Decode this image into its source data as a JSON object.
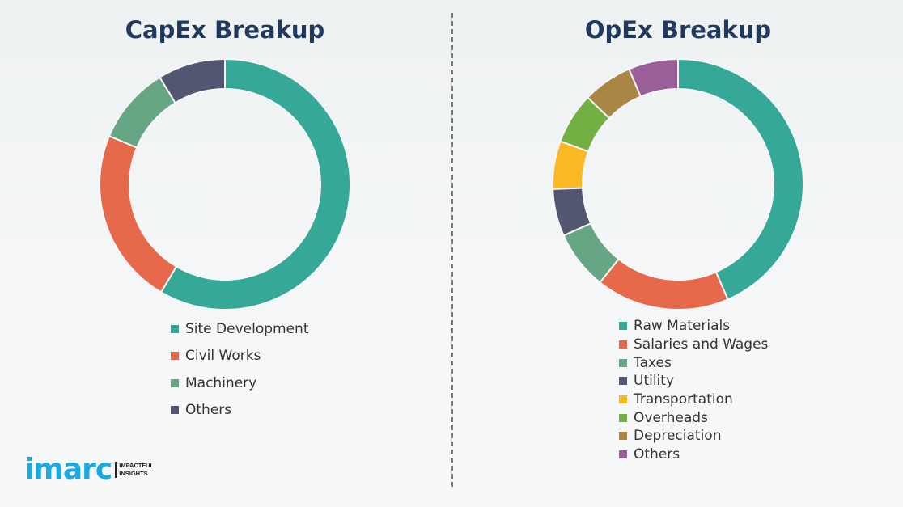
{
  "chart_data": [
    {
      "type": "pie",
      "title": "CapEx Breakup",
      "donut": true,
      "legend_position": "bottom",
      "categories": [
        "Site Development",
        "Civil Works",
        "Machinery",
        "Others"
      ],
      "values": [
        58.5,
        22.8,
        10.0,
        8.7
      ],
      "colors": [
        "#35a898",
        "#e5694a",
        "#66a684",
        "#535670"
      ]
    },
    {
      "type": "pie",
      "title": "OpEx Breakup",
      "donut": true,
      "legend_position": "bottom",
      "categories": [
        "Raw Materials",
        "Salaries and Wages",
        "Taxes",
        "Utility",
        "Transportation",
        "Overheads",
        "Depreciation",
        "Others"
      ],
      "values": [
        43.5,
        17.2,
        7.6,
        6.1,
        6.2,
        6.6,
        6.4,
        6.4
      ],
      "colors": [
        "#35a898",
        "#e5694a",
        "#66a684",
        "#535670",
        "#fbb822",
        "#72b043",
        "#a98646",
        "#9a5f98"
      ]
    }
  ],
  "logo": {
    "word": "imarc",
    "tagline_1": "IMPACTFUL",
    "tagline_2": "INSIGHTS",
    "color": "#1aa9e1"
  }
}
